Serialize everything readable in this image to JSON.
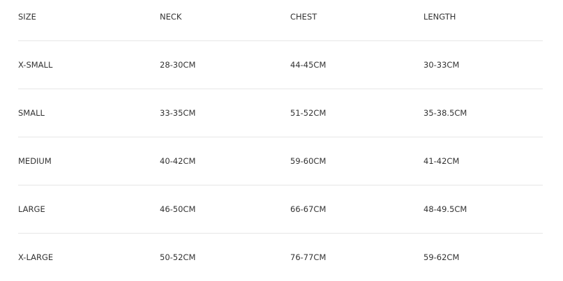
{
  "headers": [
    "SIZE",
    "NECK",
    "CHEST",
    "LENGTH"
  ],
  "rows": [
    [
      "X-SMALL",
      "28-30CM",
      "44-45CM",
      "30-33CM"
    ],
    [
      "SMALL",
      "33-35CM",
      "51-52CM",
      "35-38.5CM"
    ],
    [
      "MEDIUM",
      "40-42CM",
      "59-60CM",
      "41-42CM"
    ],
    [
      "LARGE",
      "46-50CM",
      "66-67CM",
      "48-49.5CM"
    ],
    [
      "X-LARGE",
      "50-52CM",
      "76-77CM",
      "59-62CM"
    ]
  ]
}
